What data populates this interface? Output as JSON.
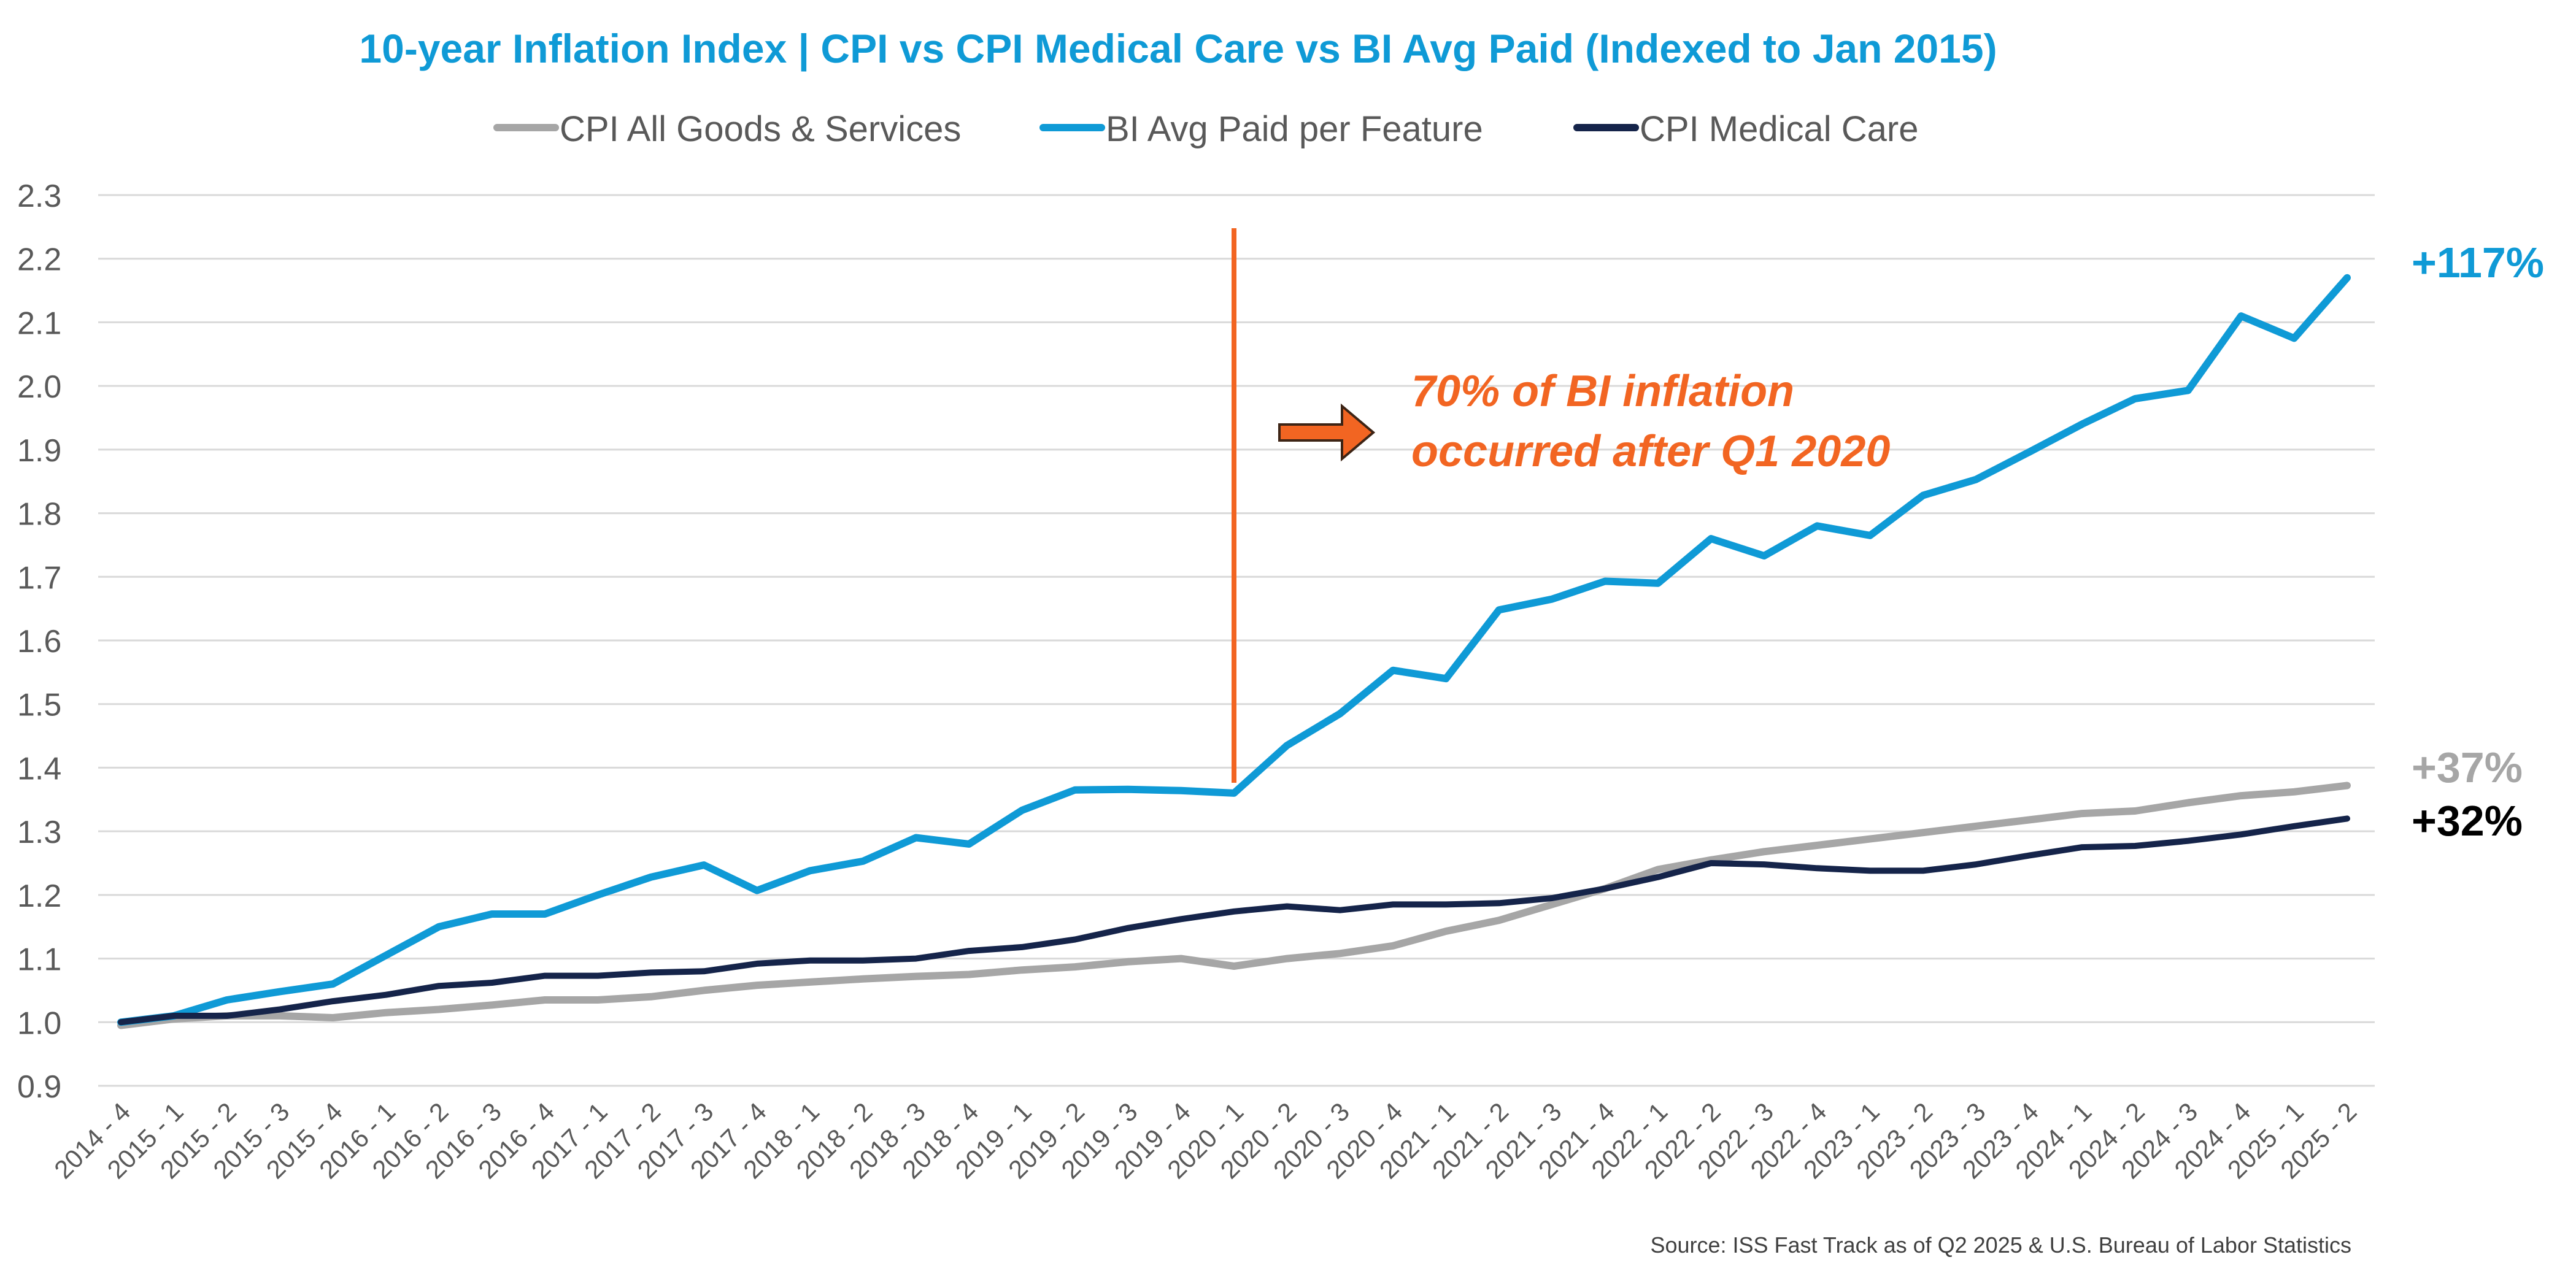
{
  "chart_data": {
    "type": "line",
    "title": "10-year Inflation Index | CPI vs CPI Medical Care vs BI Avg Paid (Indexed to Jan 2015)",
    "xlabel": "",
    "ylabel": "",
    "ylim": [
      0.9,
      2.3
    ],
    "yticks": [
      "0.9",
      "1.0",
      "1.1",
      "1.2",
      "1.3",
      "1.4",
      "1.5",
      "1.6",
      "1.7",
      "1.8",
      "1.9",
      "2.0",
      "2.1",
      "2.2",
      "2.3"
    ],
    "grid": true,
    "legend_position": "top-center",
    "categories": [
      "2014 - 4",
      "2015 - 1",
      "2015 - 2",
      "2015 - 3",
      "2015 - 4",
      "2016 - 1",
      "2016 - 2",
      "2016 - 3",
      "2016 - 4",
      "2017 - 1",
      "2017 - 2",
      "2017 - 3",
      "2017 - 4",
      "2018 - 1",
      "2018 - 2",
      "2018 - 3",
      "2018 - 4",
      "2019 - 1",
      "2019 - 2",
      "2019 - 3",
      "2019 - 4",
      "2020 - 1",
      "2020 - 2",
      "2020 - 3",
      "2020 - 4",
      "2021 - 1",
      "2021 - 2",
      "2021 - 3",
      "2021 - 4",
      "2022 - 1",
      "2022 - 2",
      "2022 - 3",
      "2022 - 4",
      "2023 - 1",
      "2023 - 2",
      "2023 - 3",
      "2023 - 4",
      "2024 - 1",
      "2024 - 2",
      "2024 - 3",
      "2024 - 4",
      "2025 - 1",
      "2025 - 2"
    ],
    "series": [
      {
        "name": "CPI All Goods & Services",
        "color": "#a6a6a6",
        "values": [
          0.995,
          1.005,
          1.01,
          1.01,
          1.007,
          1.015,
          1.02,
          1.027,
          1.035,
          1.035,
          1.04,
          1.05,
          1.058,
          1.063,
          1.068,
          1.072,
          1.075,
          1.082,
          1.087,
          1.095,
          1.1,
          1.088,
          1.1,
          1.108,
          1.12,
          1.143,
          1.16,
          1.185,
          1.21,
          1.24,
          1.255,
          1.268,
          1.278,
          1.288,
          1.298,
          1.308,
          1.318,
          1.328,
          1.332,
          1.345,
          1.356,
          1.362,
          1.372
        ]
      },
      {
        "name": "BI Avg Paid per Feature",
        "color": "#0f9ad6",
        "values": [
          1.0,
          1.01,
          1.035,
          1.048,
          1.06,
          1.105,
          1.15,
          1.17,
          1.17,
          1.2,
          1.228,
          1.247,
          1.207,
          1.238,
          1.253,
          1.29,
          1.28,
          1.333,
          1.365,
          1.366,
          1.364,
          1.36,
          1.435,
          1.485,
          1.553,
          1.54,
          1.648,
          1.665,
          1.693,
          1.69,
          1.76,
          1.733,
          1.78,
          1.765,
          1.828,
          1.853,
          1.896,
          1.94,
          1.98,
          1.993,
          2.11,
          2.075,
          2.17
        ]
      },
      {
        "name": "CPI Medical Care",
        "color": "#15244a",
        "values": [
          1.0,
          1.01,
          1.01,
          1.02,
          1.033,
          1.043,
          1.057,
          1.062,
          1.073,
          1.073,
          1.078,
          1.08,
          1.092,
          1.097,
          1.097,
          1.1,
          1.112,
          1.118,
          1.13,
          1.148,
          1.162,
          1.174,
          1.182,
          1.176,
          1.185,
          1.185,
          1.187,
          1.195,
          1.21,
          1.228,
          1.25,
          1.248,
          1.242,
          1.238,
          1.238,
          1.248,
          1.262,
          1.275,
          1.277,
          1.285,
          1.295,
          1.308,
          1.32
        ]
      }
    ],
    "annotations": {
      "vline_category": "2020 - 1",
      "vline_color": "#f26522",
      "callout_line1": "70% of BI inflation",
      "callout_line2": "occurred after Q1 2020",
      "callout_color": "#f26522",
      "end_labels": [
        {
          "text": "+117%",
          "series": "BI Avg Paid per Feature",
          "color": "#0f9ad6"
        },
        {
          "text": "+37%",
          "series": "CPI All Goods & Services",
          "color": "#a6a6a6"
        },
        {
          "text": "+32%",
          "series": "CPI Medical Care",
          "color": "#000000"
        }
      ]
    },
    "source": "Source:  ISS Fast Track as of Q2 2025 & U.S. Bureau of Labor Statistics"
  }
}
